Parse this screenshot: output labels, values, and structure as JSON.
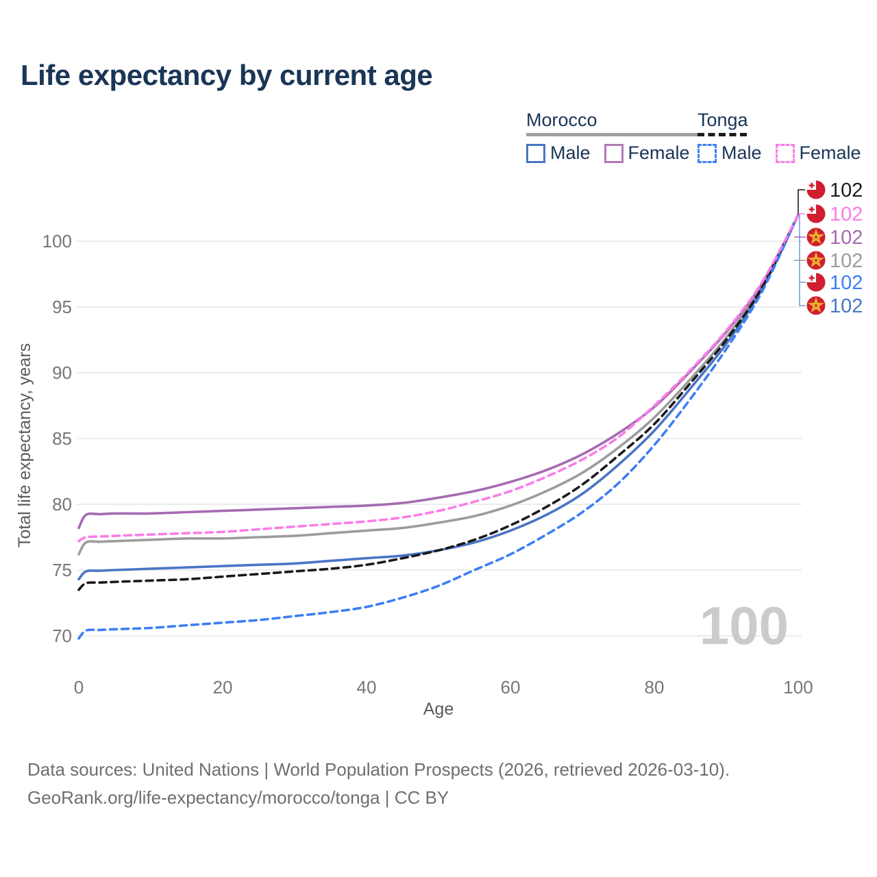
{
  "title": "Life expectancy by current age",
  "legend": {
    "groups": [
      {
        "label": "Morocco",
        "line_style": "solid",
        "underline_color": "#a0a0a0",
        "items": [
          {
            "label": "Male",
            "color": "#4a75c4"
          },
          {
            "label": "Female",
            "color": "#b279b8"
          }
        ]
      },
      {
        "label": "Tonga",
        "line_style": "dashed",
        "underline_color": "#1a1a1a",
        "items": [
          {
            "label": "Male",
            "color": "#3d7ef5"
          },
          {
            "label": "Female",
            "color": "#fb7ce8"
          }
        ]
      }
    ]
  },
  "watermark": "100",
  "footer": {
    "line1": "Data sources: United Nations | World Population Prospects (2026, retrieved 2026-03-10).",
    "line2": "GeoRank.org/life-expectancy/morocco/tonga | CC BY"
  },
  "chart_data": {
    "type": "line",
    "title": "Life expectancy by current age",
    "xlabel": "Age",
    "ylabel": "Total life expectancy, years",
    "xlim": [
      0,
      100
    ],
    "ylim": [
      68.5,
      103.3
    ],
    "x_ticks": [
      0,
      20,
      40,
      60,
      80,
      100
    ],
    "y_ticks": [
      70,
      75,
      80,
      85,
      90,
      95,
      100
    ],
    "grid": "horizontal",
    "legend_position": "top-right",
    "x": [
      0,
      1,
      3,
      5,
      10,
      15,
      20,
      25,
      30,
      35,
      40,
      45,
      50,
      55,
      60,
      65,
      70,
      75,
      80,
      85,
      90,
      95,
      100
    ],
    "series": [
      {
        "id": "morocco-both",
        "name": "Morocco — Both sexes",
        "country": "Morocco",
        "sex": "Both",
        "color": "#9c9c9c",
        "dash": false,
        "flag": "morocco",
        "values": [
          76.2,
          77.1,
          77.15,
          77.2,
          77.3,
          77.4,
          77.4,
          77.5,
          77.6,
          77.8,
          78.0,
          78.2,
          78.6,
          79.1,
          79.9,
          81.0,
          82.4,
          84.3,
          86.6,
          89.5,
          92.7,
          96.6,
          102
        ]
      },
      {
        "id": "morocco-male",
        "name": "Morocco — Male",
        "country": "Morocco",
        "sex": "Male",
        "color": "#4a75c4",
        "dash": false,
        "flag": "morocco",
        "values": [
          74.3,
          74.9,
          74.95,
          75.0,
          75.1,
          75.2,
          75.3,
          75.4,
          75.5,
          75.7,
          75.9,
          76.1,
          76.5,
          77.1,
          78.0,
          79.2,
          80.8,
          83.0,
          85.6,
          88.8,
          92.2,
          96.4,
          102
        ]
      },
      {
        "id": "morocco-female",
        "name": "Morocco — Female",
        "country": "Morocco",
        "sex": "Female",
        "color": "#a66bb1",
        "dash": false,
        "flag": "morocco",
        "values": [
          78.2,
          79.2,
          79.25,
          79.3,
          79.3,
          79.4,
          79.5,
          79.6,
          79.7,
          79.8,
          79.9,
          80.1,
          80.5,
          81.0,
          81.7,
          82.6,
          83.8,
          85.4,
          87.4,
          90.1,
          93.1,
          96.8,
          102
        ]
      },
      {
        "id": "tonga-both",
        "name": "Tonga — Both sexes",
        "country": "Tonga",
        "sex": "Both",
        "color": "#1a1a1a",
        "dash": true,
        "flag": "tonga",
        "values": [
          73.5,
          74.0,
          74.05,
          74.1,
          74.2,
          74.3,
          74.5,
          74.7,
          74.9,
          75.1,
          75.4,
          75.9,
          76.5,
          77.3,
          78.4,
          79.8,
          81.5,
          83.7,
          86.1,
          89.2,
          92.5,
          96.5,
          102
        ]
      },
      {
        "id": "tonga-male",
        "name": "Tonga — Male",
        "country": "Tonga",
        "sex": "Male",
        "color": "#3d7ef5",
        "dash": true,
        "flag": "tonga",
        "values": [
          69.8,
          70.4,
          70.45,
          70.5,
          70.6,
          70.8,
          71.0,
          71.2,
          71.5,
          71.8,
          72.2,
          72.9,
          73.8,
          75.0,
          76.2,
          77.7,
          79.4,
          81.6,
          84.5,
          88.0,
          91.8,
          96.2,
          102
        ]
      },
      {
        "id": "tonga-female",
        "name": "Tonga — Female",
        "country": "Tonga",
        "sex": "Female",
        "color": "#fb7ce8",
        "dash": true,
        "flag": "tonga",
        "values": [
          77.2,
          77.5,
          77.55,
          77.6,
          77.7,
          77.8,
          77.9,
          78.1,
          78.3,
          78.5,
          78.7,
          79.0,
          79.5,
          80.2,
          81.0,
          82.1,
          83.4,
          85.1,
          87.5,
          90.2,
          93.2,
          96.9,
          102
        ]
      }
    ],
    "end_labels": [
      {
        "value": "102",
        "series": "tonga-both",
        "color": "#1a1a1a",
        "flag": "tonga"
      },
      {
        "value": "102",
        "series": "tonga-female",
        "color": "#fb7ce8",
        "flag": "tonga"
      },
      {
        "value": "102",
        "series": "morocco-female",
        "color": "#a66bb1",
        "flag": "morocco"
      },
      {
        "value": "102",
        "series": "morocco-both",
        "color": "#9c9c9c",
        "flag": "morocco"
      },
      {
        "value": "102",
        "series": "tonga-male",
        "color": "#3d7ef5",
        "flag": "tonga"
      },
      {
        "value": "102",
        "series": "morocco-male",
        "color": "#4a75c4",
        "flag": "morocco"
      }
    ],
    "colors": {
      "grid": "#ececec",
      "tick_text": "#767676",
      "axis_title_text": "#5a5a5a",
      "watermark": "#c3c3c3",
      "leader_blue": "#7d9ce8",
      "flag_red": "#d0202f",
      "flag_star_gold": "#f0b92e"
    }
  }
}
